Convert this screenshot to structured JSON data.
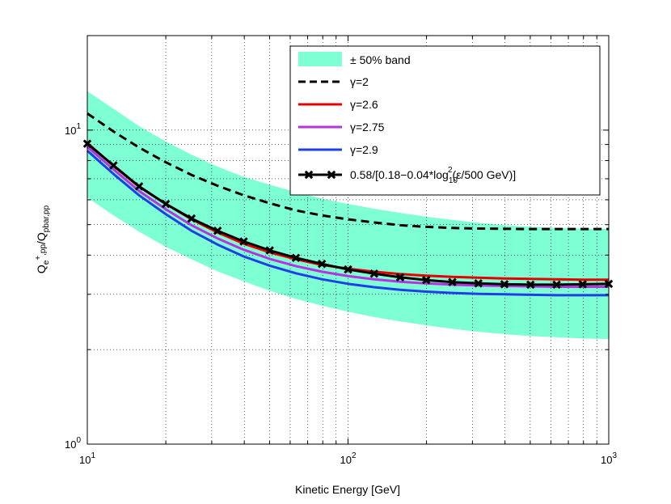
{
  "chart_data": {
    "type": "line",
    "x_scale": "log",
    "y_scale": "log",
    "xlim": [
      10,
      1000
    ],
    "ylim": [
      1,
      20
    ],
    "grid": true,
    "legend_position": "top-right",
    "xlabel": "Kinetic Energy [GeV]",
    "ylabel": {
      "base": "Q",
      "sub1": "e",
      "sup1": "+",
      "sub1b": ",pp",
      "slash": "/Q",
      "sub2": "pbar,pp"
    },
    "x_ticks": [
      {
        "value": 10,
        "base": "10",
        "exp": "1"
      },
      {
        "value": 100,
        "base": "10",
        "exp": "2"
      },
      {
        "value": 1000,
        "base": "10",
        "exp": "3"
      }
    ],
    "y_ticks": [
      {
        "value": 1,
        "base": "10",
        "exp": "0"
      },
      {
        "value": 10,
        "base": "10",
        "exp": "1"
      }
    ],
    "band": {
      "name": "± 50% band",
      "color": "#7FFFD4",
      "x": [
        10,
        12.6,
        15.8,
        20,
        25.1,
        31.6,
        39.8,
        50.1,
        63.1,
        79.4,
        100,
        125.9,
        158.5,
        199.5,
        251.2,
        316.2,
        398.1,
        501.2,
        631,
        794.3,
        1000
      ],
      "upper": [
        13.3,
        11.7,
        10.3,
        9.2,
        8.35,
        7.65,
        7.1,
        6.7,
        6.35,
        6.05,
        5.82,
        5.62,
        5.45,
        5.3,
        5.18,
        5.07,
        4.98,
        4.92,
        4.88,
        4.86,
        4.85
      ],
      "lower": [
        6.1,
        5.35,
        4.75,
        4.25,
        3.88,
        3.55,
        3.3,
        3.08,
        2.9,
        2.76,
        2.64,
        2.54,
        2.46,
        2.39,
        2.33,
        2.28,
        2.24,
        2.21,
        2.19,
        2.17,
        2.16
      ]
    },
    "x": [
      10,
      12.6,
      15.8,
      20,
      25.1,
      31.6,
      39.8,
      50.1,
      63.1,
      79.4,
      100,
      125.9,
      158.5,
      199.5,
      251.2,
      316.2,
      398.1,
      501.2,
      631,
      794.3,
      1000
    ],
    "series": [
      {
        "name": "γ=2",
        "color": "#000000",
        "style": "dashed",
        "values": [
          11.3,
          9.9,
          8.8,
          7.9,
          7.2,
          6.65,
          6.2,
          5.85,
          5.55,
          5.35,
          5.2,
          5.08,
          4.98,
          4.92,
          4.88,
          4.86,
          4.85,
          4.84,
          4.84,
          4.84,
          4.84
        ]
      },
      {
        "name": "γ=2.6",
        "color": "#e60000",
        "style": "solid",
        "values": [
          9.1,
          7.7,
          6.6,
          5.82,
          5.2,
          4.72,
          4.35,
          4.08,
          3.88,
          3.72,
          3.62,
          3.54,
          3.48,
          3.44,
          3.41,
          3.39,
          3.37,
          3.36,
          3.35,
          3.34,
          3.34
        ]
      },
      {
        "name": "γ=2.75",
        "color": "#b833e0",
        "style": "solid",
        "values": [
          8.85,
          7.5,
          6.4,
          5.6,
          4.98,
          4.52,
          4.16,
          3.89,
          3.69,
          3.54,
          3.43,
          3.35,
          3.29,
          3.25,
          3.22,
          3.2,
          3.19,
          3.18,
          3.17,
          3.17,
          3.17
        ]
      },
      {
        "name": "γ=2.9",
        "color": "#1f3fe6",
        "style": "solid",
        "values": [
          8.6,
          7.25,
          6.2,
          5.4,
          4.78,
          4.32,
          3.96,
          3.7,
          3.5,
          3.35,
          3.24,
          3.16,
          3.1,
          3.06,
          3.03,
          3.01,
          3.0,
          2.99,
          2.98,
          2.98,
          2.98
        ]
      },
      {
        "name": "0.58/[0.18−0.04*log",
        "name_sub": "10",
        "name_sup": "2",
        "name_tail": "(ε/500 GeV)]",
        "color": "#000000",
        "style": "solid-marker",
        "values": [
          9.05,
          7.72,
          6.62,
          5.82,
          5.23,
          4.78,
          4.42,
          4.14,
          3.92,
          3.75,
          3.6,
          3.49,
          3.4,
          3.33,
          3.28,
          3.25,
          3.23,
          3.22,
          3.22,
          3.23,
          3.24
        ]
      }
    ]
  }
}
